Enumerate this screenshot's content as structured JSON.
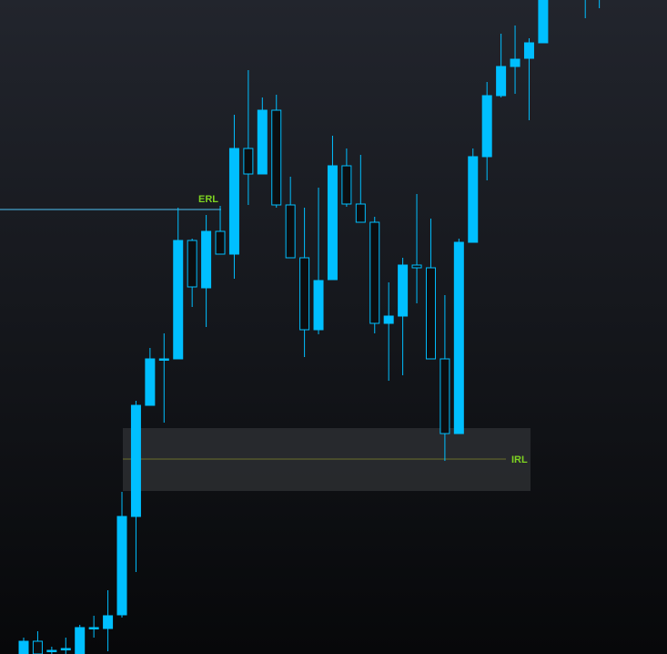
{
  "chart_data": {
    "type": "candlestick",
    "x": [
      0,
      1,
      2,
      3,
      4,
      5,
      6,
      7,
      8,
      9,
      10,
      11,
      12,
      13,
      14,
      15,
      16,
      17,
      18,
      19,
      20,
      21,
      22,
      23,
      24,
      25,
      26,
      27,
      28,
      29,
      30,
      31,
      32,
      33,
      34,
      35,
      36,
      37,
      40,
      41
    ],
    "open": [
      0,
      14,
      4,
      6,
      0,
      29,
      28,
      43,
      151,
      273,
      324,
      324,
      454,
      402,
      464,
      439,
      555,
      527,
      597,
      493,
      435,
      356,
      411,
      536,
      494,
      474,
      363,
      371,
      427,
      424,
      324,
      242,
      452,
      546,
      613,
      645,
      654,
      671,
      760,
      760
    ],
    "high": [
      18,
      25,
      8,
      18,
      32,
      42,
      70,
      178,
      278,
      336,
      352,
      490,
      456,
      482,
      492,
      592,
      641,
      611,
      614,
      524,
      490,
      512,
      569,
      555,
      548,
      480,
      408,
      435,
      505,
      478,
      394,
      456,
      555,
      628,
      681,
      690,
      676,
      745,
      770,
      770
    ],
    "low": [
      0,
      0,
      0,
      0,
      0,
      18,
      3,
      40,
      90,
      273,
      254,
      324,
      381,
      359,
      439,
      412,
      493,
      527,
      490,
      435,
      326,
      351,
      411,
      491,
      474,
      352,
      300,
      306,
      385,
      324,
      212,
      242,
      452,
      520,
      611,
      615,
      586,
      671,
      698,
      709
    ],
    "close": [
      14,
      0,
      4,
      6,
      29,
      29,
      42,
      151,
      273,
      324,
      324,
      454,
      403,
      464,
      439,
      555,
      527,
      597,
      493,
      435,
      356,
      410,
      536,
      494,
      474,
      363,
      371,
      427,
      424,
      324,
      242,
      452,
      546,
      613,
      645,
      653,
      671,
      740,
      750,
      755
    ],
    "xlim": [
      -1.685,
      45.82
    ],
    "ylim": [
      0,
      718
    ],
    "up_color": "#00bfff",
    "down_fill": "#0b0d10",
    "erl": {
      "label": "ERL",
      "value": 488,
      "color": "#4fc3f7",
      "label_color": "#7ed321"
    },
    "irl": {
      "label": "IRL",
      "value": 214,
      "zone": [
        179,
        248
      ],
      "zone_color": "#2a2c30",
      "line_color": "#6b6f2a",
      "label_color": "#7ed321"
    }
  }
}
